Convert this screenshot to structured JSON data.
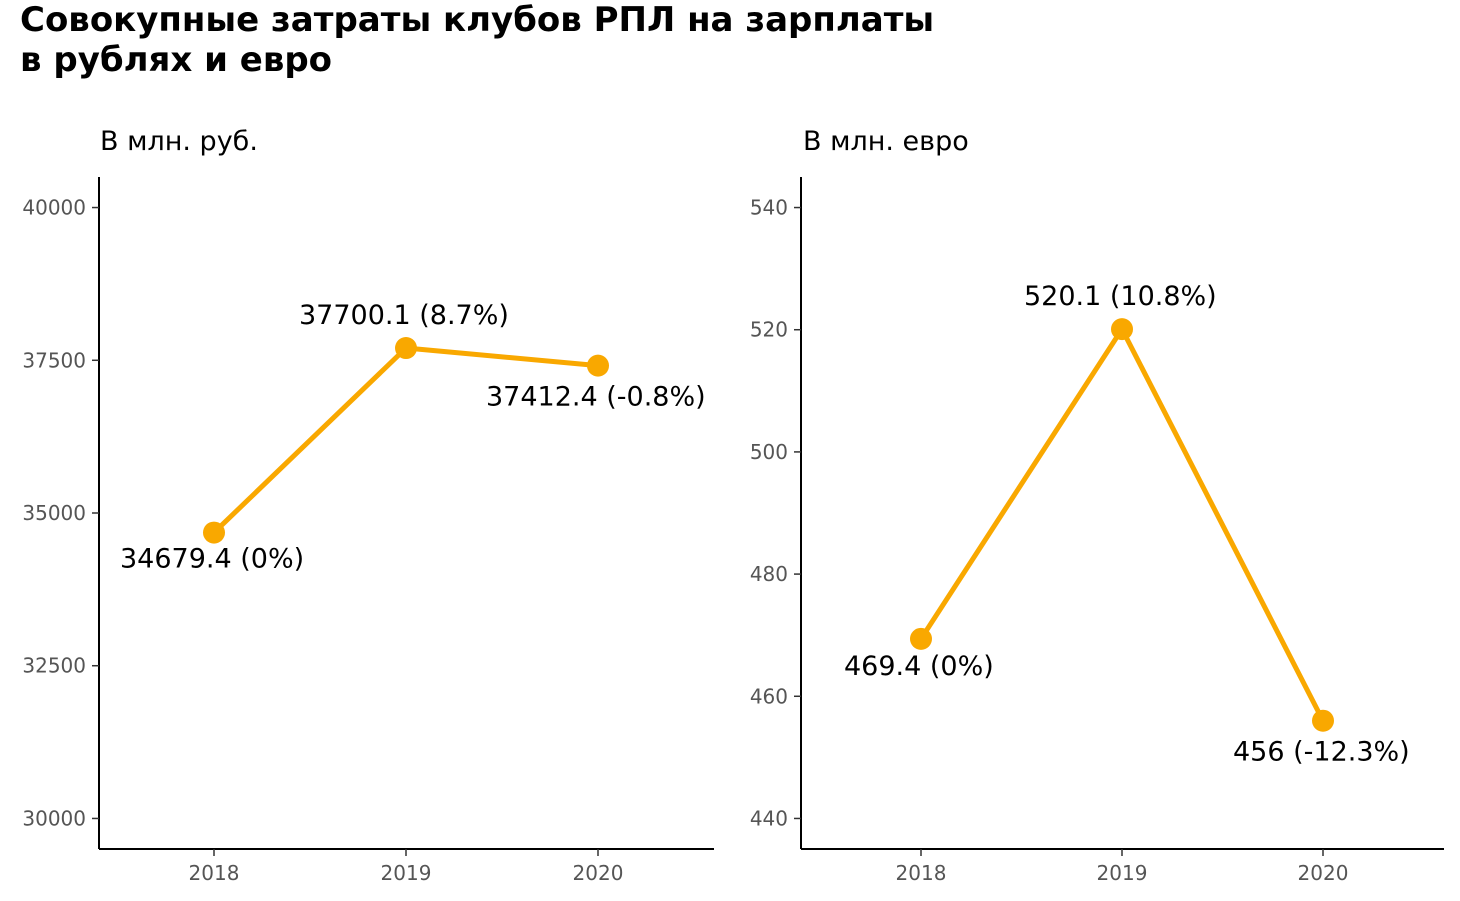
{
  "title_lines": [
    "Совокупные затраты клубов РПЛ на зарплаты",
    "в рублях и евро"
  ],
  "colors": {
    "line": "#F9A800",
    "axis": "#000000",
    "tick_text": "#555555"
  },
  "chart_data": [
    {
      "type": "line",
      "title": "В млн. руб.",
      "categories": [
        "2018",
        "2019",
        "2020"
      ],
      "values": [
        34679.4,
        37700.1,
        37412.4
      ],
      "labels": [
        "34679.4 (0%)",
        "37700.1 (8.7%)",
        "37412.4 (-0.8%)"
      ],
      "yticks": [
        30000,
        32500,
        35000,
        37500,
        40000
      ],
      "ylim": [
        29500,
        40500
      ],
      "grid": false
    },
    {
      "type": "line",
      "title": "В млн. евро",
      "categories": [
        "2018",
        "2019",
        "2020"
      ],
      "values": [
        469.4,
        520.1,
        456
      ],
      "labels": [
        "469.4 (0%)",
        "520.1 (10.8%)",
        "456 (-12.3%)"
      ],
      "yticks": [
        440,
        460,
        480,
        500,
        520,
        540
      ],
      "ylim": [
        435,
        545
      ],
      "grid": false
    }
  ]
}
